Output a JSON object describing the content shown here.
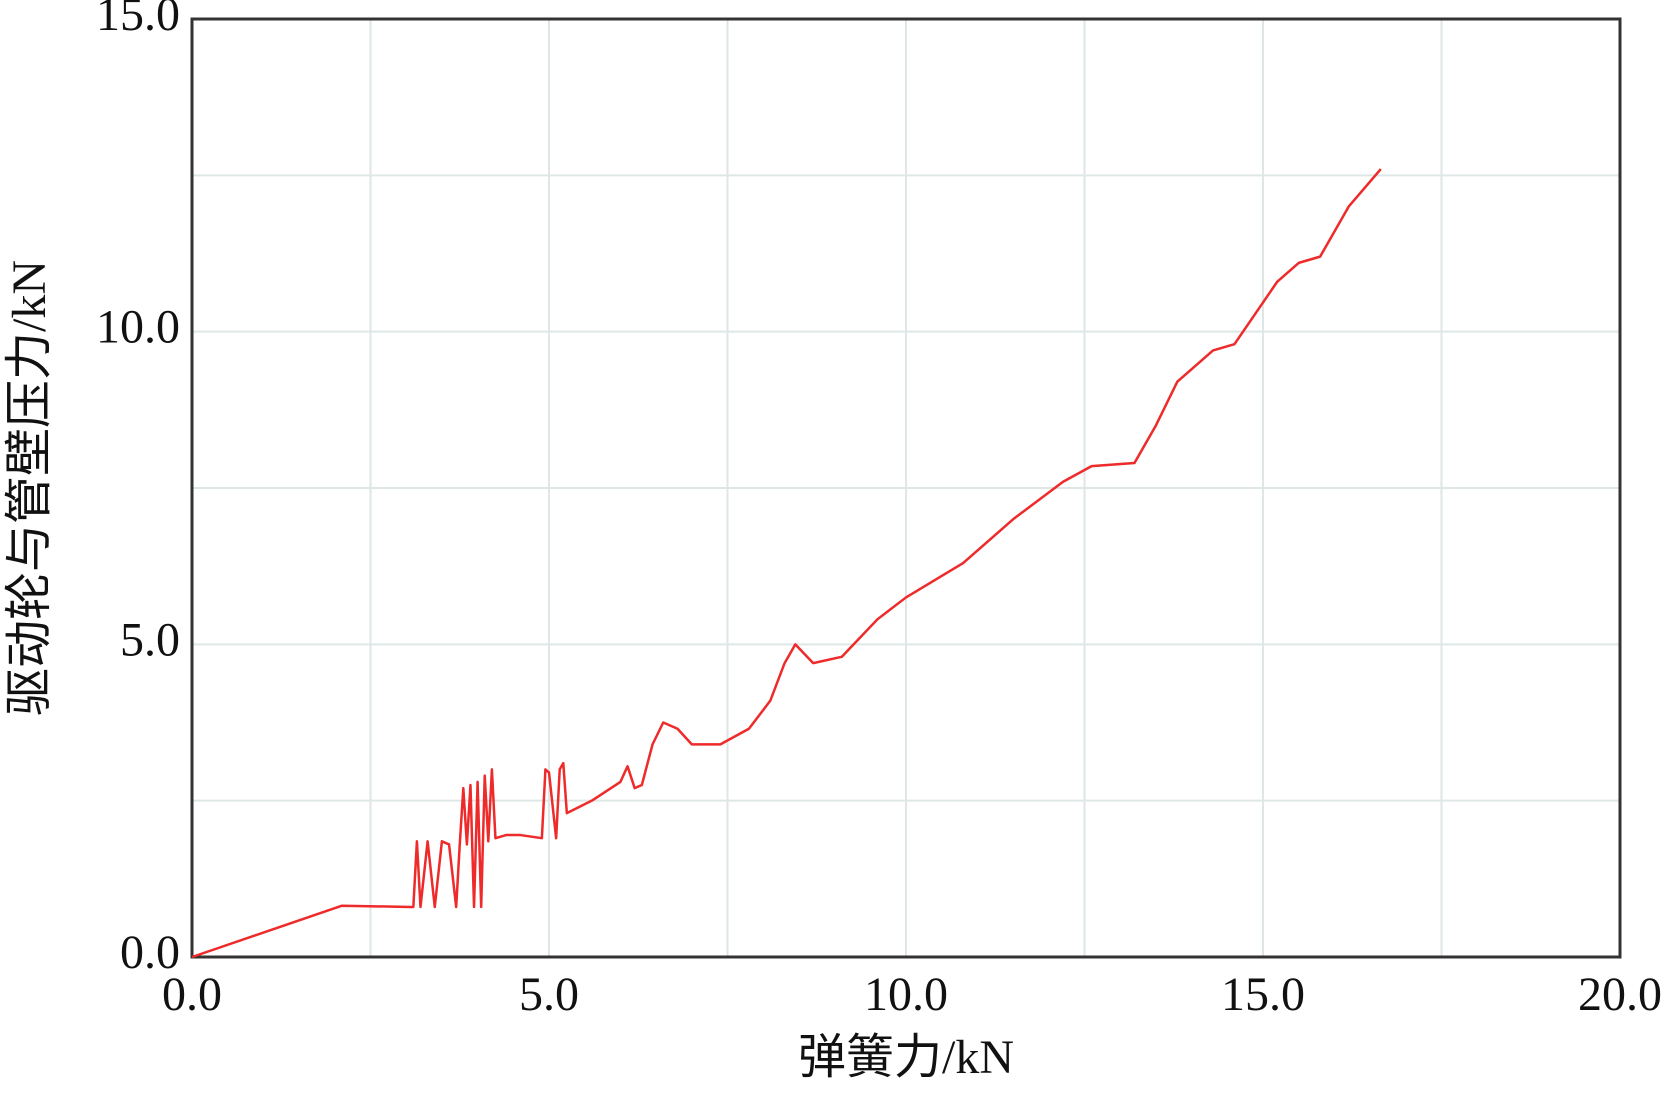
{
  "chart_data": {
    "type": "line",
    "x_label": "弹簧力/kN",
    "y_label": "驱动轮与管壁压力/kN",
    "x": [
      0,
      2.1,
      3.06,
      3.1,
      3.15,
      3.2,
      3.3,
      3.4,
      3.5,
      3.6,
      3.7,
      3.75,
      3.8,
      3.85,
      3.9,
      3.95,
      4.0,
      4.05,
      4.1,
      4.15,
      4.2,
      4.25,
      4.4,
      4.6,
      4.9,
      4.95,
      5.0,
      5.1,
      5.15,
      5.2,
      5.25,
      5.6,
      6.0,
      6.1,
      6.2,
      6.3,
      6.45,
      6.6,
      6.8,
      7.0,
      7.4,
      7.8,
      8.1,
      8.3,
      8.45,
      8.7,
      9.1,
      9.6,
      10.0,
      10.8,
      11.5,
      12.2,
      12.6,
      13.2,
      13.5,
      13.8,
      14.3,
      14.6,
      14.9,
      15.2,
      15.5,
      15.8,
      16.2,
      16.65
    ],
    "series": [
      {
        "name": "驱动轮与管壁压力",
        "color": "#ee2a2a",
        "values": [
          0,
          0.82,
          0.8,
          0.8,
          1.85,
          0.8,
          1.85,
          0.8,
          1.85,
          1.8,
          0.8,
          1.8,
          2.7,
          1.8,
          2.75,
          0.8,
          2.8,
          0.8,
          2.9,
          1.85,
          3.0,
          1.9,
          1.95,
          1.95,
          1.9,
          3.0,
          2.95,
          1.9,
          3.0,
          3.1,
          2.3,
          2.5,
          2.8,
          3.05,
          2.7,
          2.75,
          3.4,
          3.75,
          3.65,
          3.4,
          3.4,
          3.65,
          4.1,
          4.7,
          5.0,
          4.7,
          4.8,
          5.4,
          5.75,
          6.3,
          7.0,
          7.6,
          7.85,
          7.9,
          8.5,
          9.2,
          9.7,
          9.8,
          10.3,
          10.8,
          11.1,
          11.2,
          12.0,
          12.6
        ]
      }
    ],
    "xlim": [
      0,
      20
    ],
    "ylim": [
      0,
      15
    ],
    "xticks": [
      {
        "value": 0,
        "label": "0.0"
      },
      {
        "value": 5,
        "label": "5.0"
      },
      {
        "value": 10,
        "label": "10.0"
      },
      {
        "value": 15,
        "label": "15.0"
      },
      {
        "value": 20,
        "label": "20.0"
      }
    ],
    "yticks": [
      {
        "value": 0,
        "label": "0.0"
      },
      {
        "value": 5,
        "label": "5.0"
      },
      {
        "value": 10,
        "label": "10.0"
      },
      {
        "value": 15,
        "label": "15.0"
      }
    ],
    "minor_xticks": [
      2.5,
      7.5,
      12.5,
      17.5
    ],
    "minor_yticks": [
      2.5,
      7.5,
      12.5
    ],
    "grid": true
  }
}
